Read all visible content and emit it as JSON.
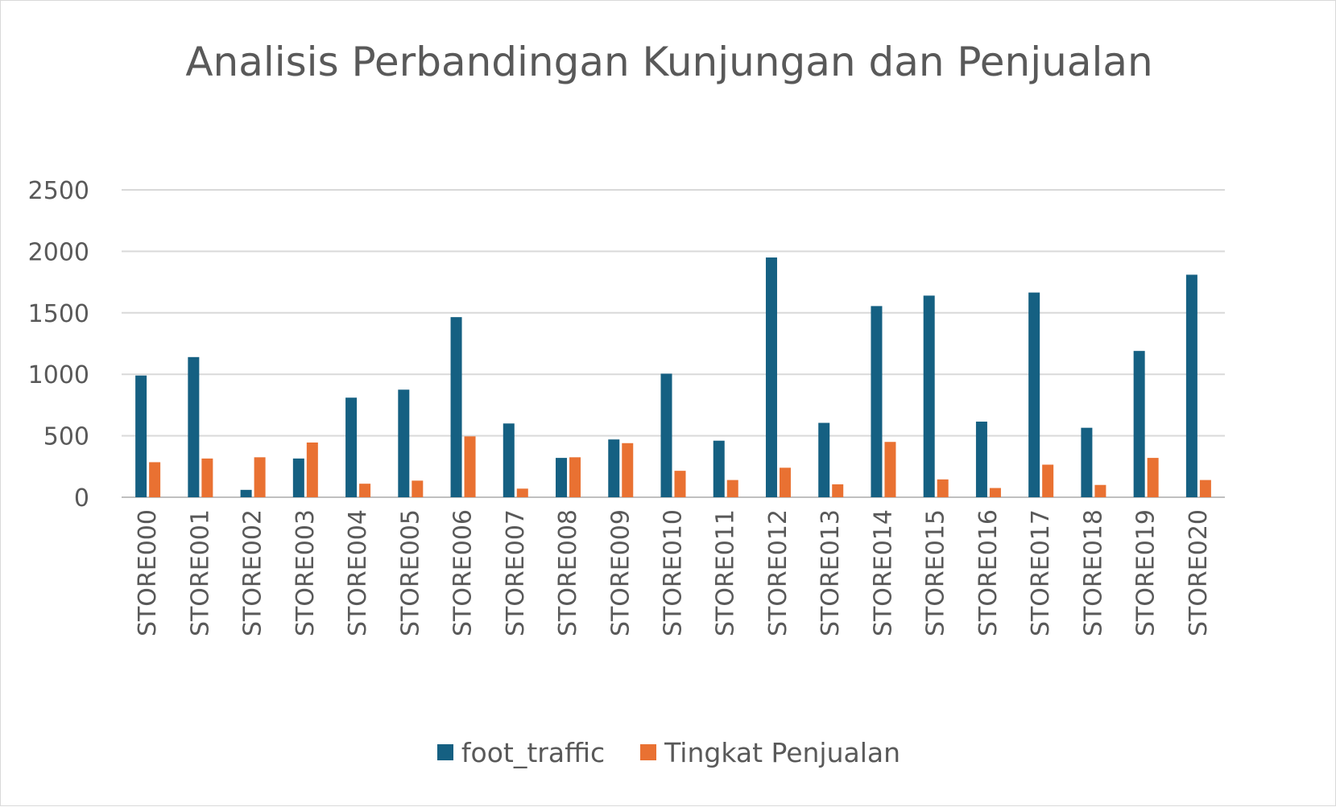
{
  "chart_data": {
    "type": "bar",
    "title": "Analisis Perbandingan Kunjungan dan Penjualan",
    "xlabel": "",
    "ylabel": "",
    "ylim": [
      0,
      2500
    ],
    "yticks": [
      0,
      500,
      1000,
      1500,
      2000,
      2500
    ],
    "grid": true,
    "legend_position": "bottom",
    "categories": [
      "STORE000",
      "STORE001",
      "STORE002",
      "STORE003",
      "STORE004",
      "STORE005",
      "STORE006",
      "STORE007",
      "STORE008",
      "STORE009",
      "STORE010",
      "STORE011",
      "STORE012",
      "STORE013",
      "STORE014",
      "STORE015",
      "STORE016",
      "STORE017",
      "STORE018",
      "STORE019",
      "STORE020"
    ],
    "series": [
      {
        "name": "foot_traffic",
        "color": "#156082",
        "values": [
          990,
          1140,
          60,
          315,
          810,
          875,
          1465,
          600,
          320,
          470,
          1005,
          460,
          1950,
          605,
          1555,
          1640,
          615,
          1665,
          565,
          1190,
          1810
        ]
      },
      {
        "name": "Tingkat Penjualan",
        "color": "#E97132",
        "values": [
          285,
          315,
          325,
          445,
          110,
          135,
          495,
          70,
          325,
          440,
          215,
          140,
          240,
          105,
          450,
          145,
          75,
          265,
          100,
          320,
          140
        ]
      }
    ]
  }
}
